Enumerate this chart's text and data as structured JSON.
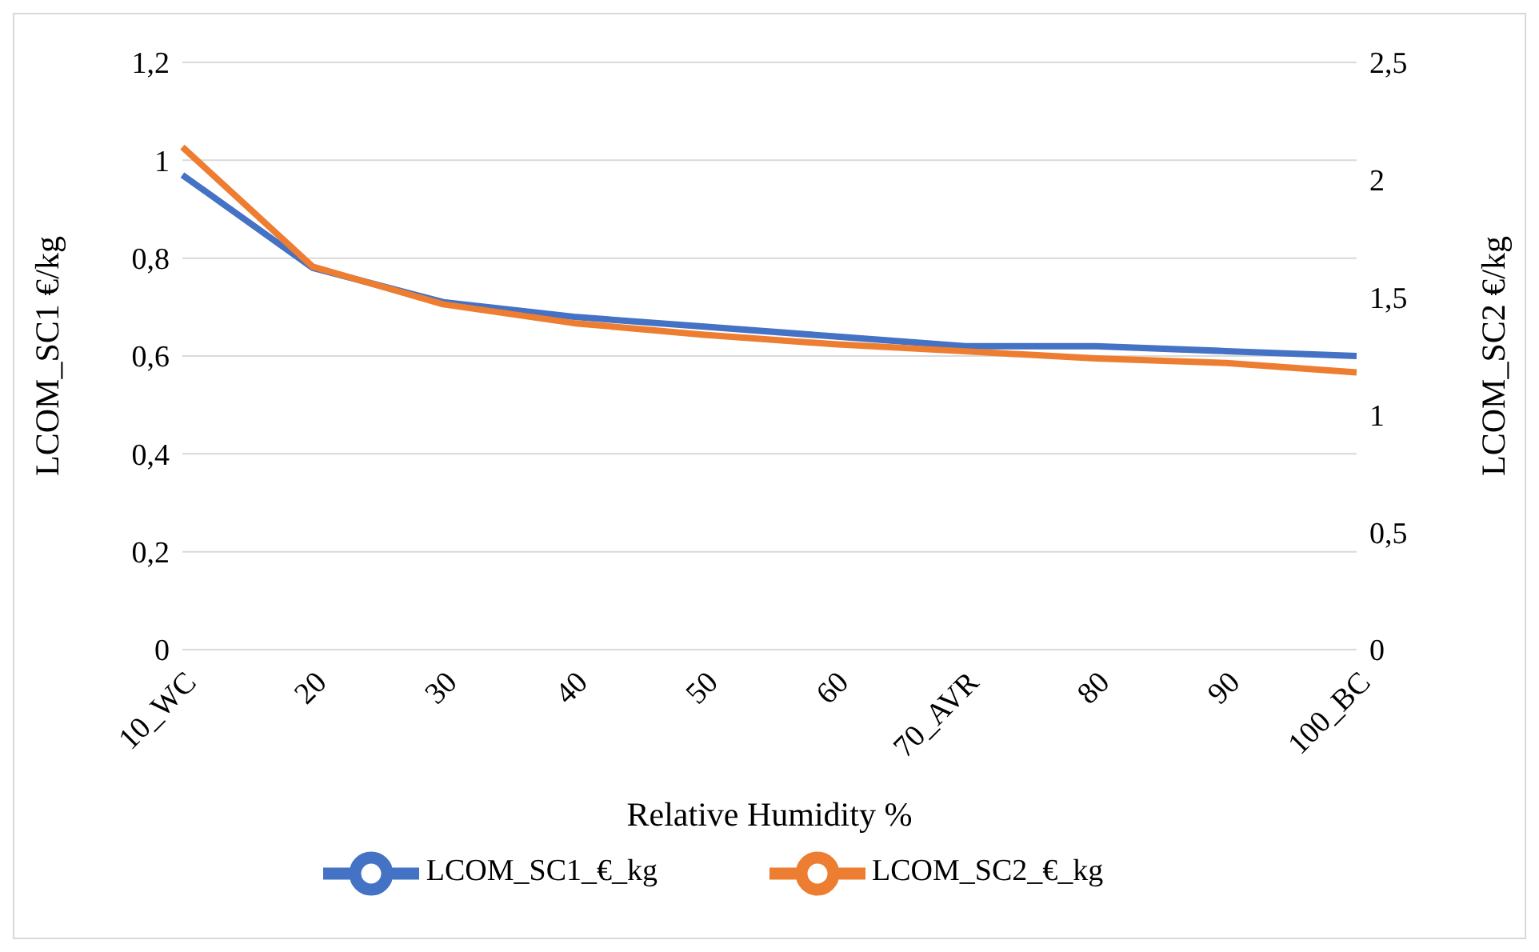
{
  "chart_data": {
    "type": "line",
    "xlabel": "Relative Humidity %",
    "ylabel": "LCOM_SC1 €/kg",
    "y2label": "LCOM_SC2 €/kg",
    "categories": [
      "10_WC",
      "20",
      "30",
      "40",
      "50",
      "60",
      "70_AVR",
      "80",
      "90",
      "100_BC"
    ],
    "series": [
      {
        "name": "LCOM_SC1_€_kg",
        "color": "#4472c4",
        "values": [
          0.97,
          0.78,
          0.71,
          0.68,
          0.66,
          0.64,
          0.62,
          0.62,
          0.61,
          0.6
        ]
      },
      {
        "name": "LCOM_SC2_€_kg",
        "color": "#ed7d31",
        "axis": "y2",
        "values": [
          2.14,
          1.63,
          1.47,
          1.39,
          1.34,
          1.3,
          1.27,
          1.24,
          1.22,
          1.18
        ]
      }
    ],
    "ylim": [
      0,
      1.2
    ],
    "yticks": [
      0,
      {
        "value": 0.2,
        "label": "0,2"
      },
      {
        "value": 0.4,
        "label": "0,4"
      },
      {
        "value": 0.6,
        "label": "0,6"
      },
      {
        "value": 0.8,
        "label": "0,8"
      },
      1,
      {
        "value": 1.2,
        "label": "1,2"
      }
    ],
    "y2lim": [
      0,
      2.5
    ],
    "y2ticks": [
      0,
      {
        "value": 0.5,
        "label": "0,5"
      },
      1,
      {
        "value": 1.5,
        "label": "1,5"
      },
      2,
      {
        "value": 2.5,
        "label": "2,5"
      }
    ],
    "grid": "y",
    "legend": "bottom",
    "marker": "none",
    "line_style": "solid"
  }
}
